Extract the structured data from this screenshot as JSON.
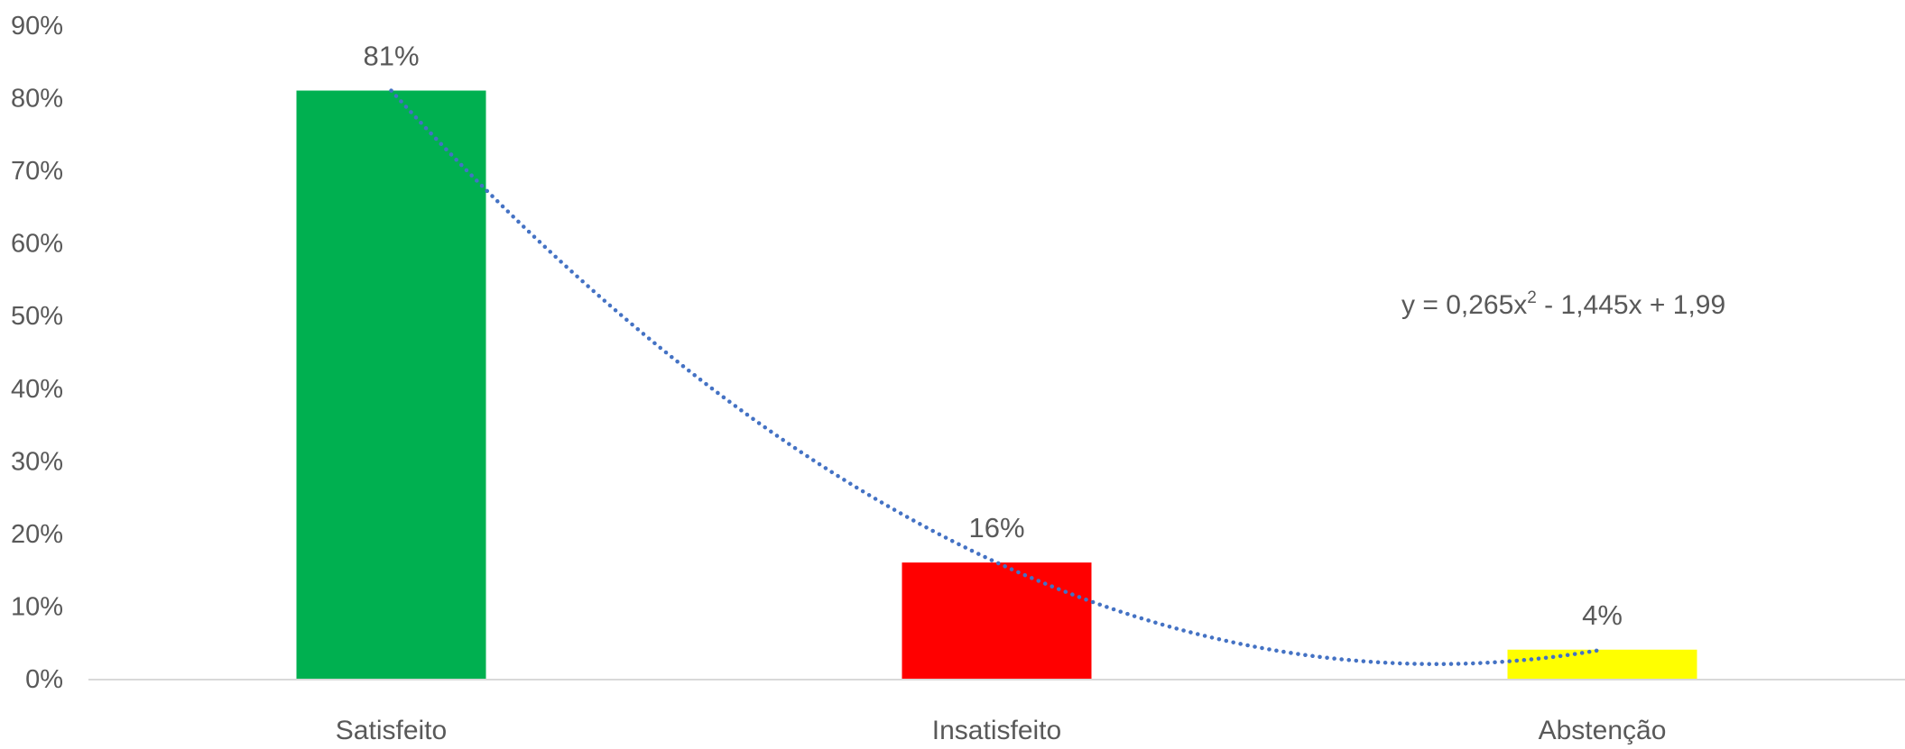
{
  "chart_data": {
    "type": "bar",
    "title": "",
    "xlabel": "",
    "ylabel": "",
    "categories": [
      "Satisfeito",
      "Insatisfeito",
      "Abstenção"
    ],
    "values": [
      81,
      16,
      4
    ],
    "data_labels": [
      "81%",
      "16%",
      "4%"
    ],
    "colors": [
      "#00B050",
      "#FF0000",
      "#FFFF00"
    ],
    "ylim": [
      0,
      90
    ],
    "yticks": [
      0,
      10,
      20,
      30,
      40,
      50,
      60,
      70,
      80,
      90
    ],
    "ytick_labels": [
      "0%",
      "10%",
      "20%",
      "30%",
      "40%",
      "50%",
      "60%",
      "70%",
      "80%",
      "90%"
    ],
    "grid": false,
    "trendline": {
      "type": "polynomial",
      "order": 2,
      "coefficients": [
        0.265,
        -1.445,
        1.99
      ],
      "color": "#4472C4",
      "style": "dotted",
      "equation_main": "y = 0,265x",
      "equation_exp": "2",
      "equation_rest": " - 1,445x + 1,99"
    }
  }
}
